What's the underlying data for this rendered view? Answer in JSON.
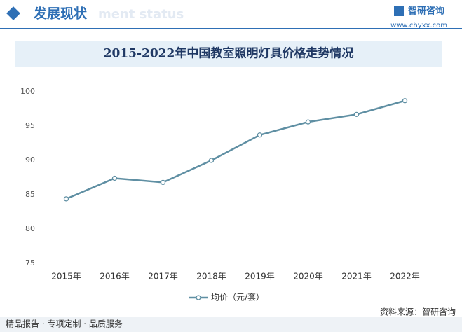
{
  "header": {
    "title": "发展现状",
    "subtitle": "ment status",
    "logo": "智研咨询",
    "url": "www.chyxx.com"
  },
  "chart_data": {
    "type": "line",
    "title": "2015-2022年中国教室照明灯具价格走势情况",
    "categories": [
      "2015年",
      "2016年",
      "2017年",
      "2018年",
      "2019年",
      "2020年",
      "2021年",
      "2022年"
    ],
    "series": [
      {
        "name": "均价（元/套）",
        "color": "#5f8fa3",
        "values": [
          84.4,
          87.4,
          86.8,
          90.0,
          93.7,
          95.6,
          96.7,
          98.7
        ]
      }
    ],
    "ylim": [
      75,
      100
    ],
    "yticks": [
      75,
      80,
      85,
      90,
      95,
      100
    ],
    "grid": false
  },
  "footer": {
    "left": "精品报告 · 专项定制 · 品质服务",
    "source": "资料来源：智研咨询"
  }
}
